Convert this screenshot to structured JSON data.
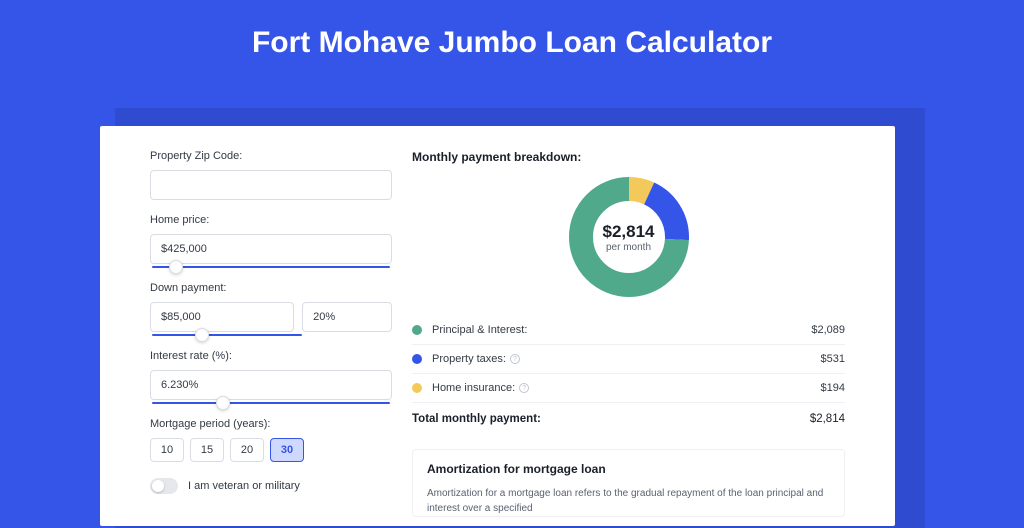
{
  "page": {
    "title": "Fort Mohave Jumbo Loan Calculator",
    "bg_color": "#3554e8",
    "shadow_color": "#2f4bd0",
    "card_bg": "#ffffff"
  },
  "form": {
    "zip": {
      "label": "Property Zip Code:",
      "value": ""
    },
    "home_price": {
      "label": "Home price:",
      "value": "$425,000",
      "slider_pct": 10
    },
    "down_payment": {
      "label": "Down payment:",
      "amount": "$85,000",
      "percent": "20%",
      "slider_pct": 20
    },
    "interest_rate": {
      "label": "Interest rate (%):",
      "value": "6.230%",
      "slider_pct": 30
    },
    "mortgage_period": {
      "label": "Mortgage period (years):",
      "options": [
        "10",
        "15",
        "20",
        "30"
      ],
      "selected": "30"
    },
    "veteran": {
      "label": "I am veteran or military",
      "on": false
    }
  },
  "breakdown": {
    "heading": "Monthly payment breakdown:",
    "donut": {
      "center_value": "$2,814",
      "center_sub": "per month",
      "type": "donut",
      "radius": 48,
      "stroke_width": 24,
      "slices": [
        {
          "key": "home_insurance",
          "fraction": 0.069,
          "color": "#f3c95b"
        },
        {
          "key": "property_taxes",
          "fraction": 0.189,
          "color": "#3554e8"
        },
        {
          "key": "principal_interest",
          "fraction": 0.742,
          "color": "#4fa98a"
        }
      ]
    },
    "rows": [
      {
        "dot": "#4fa98a",
        "label": "Principal & Interest:",
        "info": false,
        "value": "$2,089"
      },
      {
        "dot": "#3554e8",
        "label": "Property taxes:",
        "info": true,
        "value": "$531"
      },
      {
        "dot": "#f3c95b",
        "label": "Home insurance:",
        "info": true,
        "value": "$194"
      }
    ],
    "total": {
      "label": "Total monthly payment:",
      "value": "$2,814"
    }
  },
  "amortization": {
    "title": "Amortization for mortgage loan",
    "text": "Amortization for a mortgage loan refers to the gradual repayment of the loan principal and interest over a specified"
  }
}
